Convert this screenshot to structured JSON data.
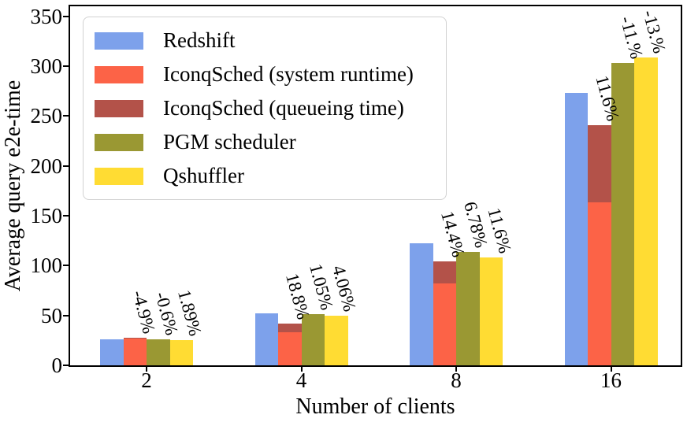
{
  "chart_data": {
    "type": "bar",
    "title": "",
    "xlabel": "Number of clients",
    "ylabel": "Average query e2e-time",
    "categories": [
      "2",
      "4",
      "8",
      "16"
    ],
    "yticks": [
      0,
      50,
      100,
      150,
      200,
      250,
      300,
      350
    ],
    "ylim": [
      0,
      360
    ],
    "grid": false,
    "legend": {
      "position": "upper-left",
      "entries": [
        "Redshift",
        "IconqSched (system runtime)",
        "IconqSched (queueing time)",
        "PGM scheduler",
        "Qshuffler"
      ]
    },
    "series": [
      {
        "name": "Redshift",
        "color": "#7DA1EB",
        "stacking": "none",
        "values": [
          26,
          52,
          122,
          273
        ]
      },
      {
        "name": "IconqSched (system runtime)",
        "color": "#FC6347",
        "stacking": "base",
        "values": [
          26.5,
          33.5,
          82,
          163.5
        ]
      },
      {
        "name": "IconqSched (queueing time)",
        "color": "#B35249",
        "stacking": "segment-on-previous",
        "values": [
          0.8,
          8.7,
          22.4,
          77.5
        ]
      },
      {
        "name": "PGM scheduler",
        "color": "#9A9833",
        "stacking": "none",
        "values": [
          26.2,
          51.5,
          113.7,
          303
        ]
      },
      {
        "name": "Qshuffler",
        "color": "#FFDC33",
        "stacking": "none",
        "values": [
          25.5,
          49.9,
          107.8,
          308.5
        ]
      }
    ],
    "annotations": {
      "series_order": [
        "IconqSched (queueing time)",
        "PGM scheduler",
        "Qshuffler"
      ],
      "groups": [
        {
          "category": "2",
          "labels": [
            "-4.9%",
            "-0.6%",
            "1.89%"
          ]
        },
        {
          "category": "4",
          "labels": [
            "18.8%",
            "1.05%",
            "4.06%"
          ]
        },
        {
          "category": "8",
          "labels": [
            "14.4%",
            "6.78%",
            "11.6%"
          ]
        },
        {
          "category": "16",
          "labels": [
            "11.6%",
            "-11.%",
            "-13.%"
          ]
        }
      ]
    },
    "colors": {
      "axis": "#000000",
      "legend_border": "#d2d2d2",
      "background": "#ffffff"
    }
  }
}
